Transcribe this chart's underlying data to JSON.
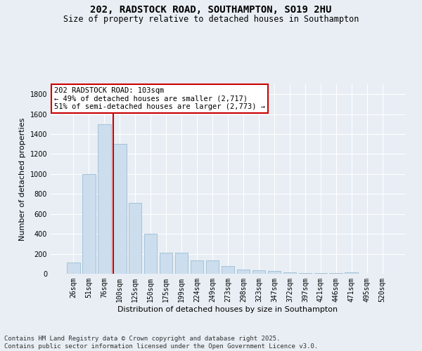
{
  "title_line1": "202, RADSTOCK ROAD, SOUTHAMPTON, SO19 2HU",
  "title_line2": "Size of property relative to detached houses in Southampton",
  "xlabel": "Distribution of detached houses by size in Southampton",
  "ylabel": "Number of detached properties",
  "categories": [
    "26sqm",
    "51sqm",
    "76sqm",
    "100sqm",
    "125sqm",
    "150sqm",
    "175sqm",
    "199sqm",
    "224sqm",
    "249sqm",
    "273sqm",
    "298sqm",
    "323sqm",
    "347sqm",
    "372sqm",
    "397sqm",
    "421sqm",
    "446sqm",
    "471sqm",
    "495sqm",
    "520sqm"
  ],
  "values": [
    110,
    1000,
    1500,
    1300,
    710,
    400,
    210,
    210,
    135,
    135,
    75,
    40,
    35,
    25,
    15,
    10,
    10,
    8,
    15,
    0,
    0
  ],
  "bar_color": "#ccdded",
  "bar_edge_color": "#9bbdd4",
  "vline_color": "#cc0000",
  "annotation_text": "202 RADSTOCK ROAD: 103sqm\n← 49% of detached houses are smaller (2,717)\n51% of semi-detached houses are larger (2,773) →",
  "annotation_box_color": "#ffffff",
  "annotation_box_edge": "#cc0000",
  "ylim": [
    0,
    1900
  ],
  "yticks": [
    0,
    200,
    400,
    600,
    800,
    1000,
    1200,
    1400,
    1600,
    1800
  ],
  "bg_color": "#e8eef4",
  "grid_color": "#ffffff",
  "footer_text": "Contains HM Land Registry data © Crown copyright and database right 2025.\nContains public sector information licensed under the Open Government Licence v3.0.",
  "title_fontsize": 10,
  "subtitle_fontsize": 8.5,
  "axis_label_fontsize": 8,
  "tick_fontsize": 7,
  "annotation_fontsize": 7.5,
  "footer_fontsize": 6.5
}
